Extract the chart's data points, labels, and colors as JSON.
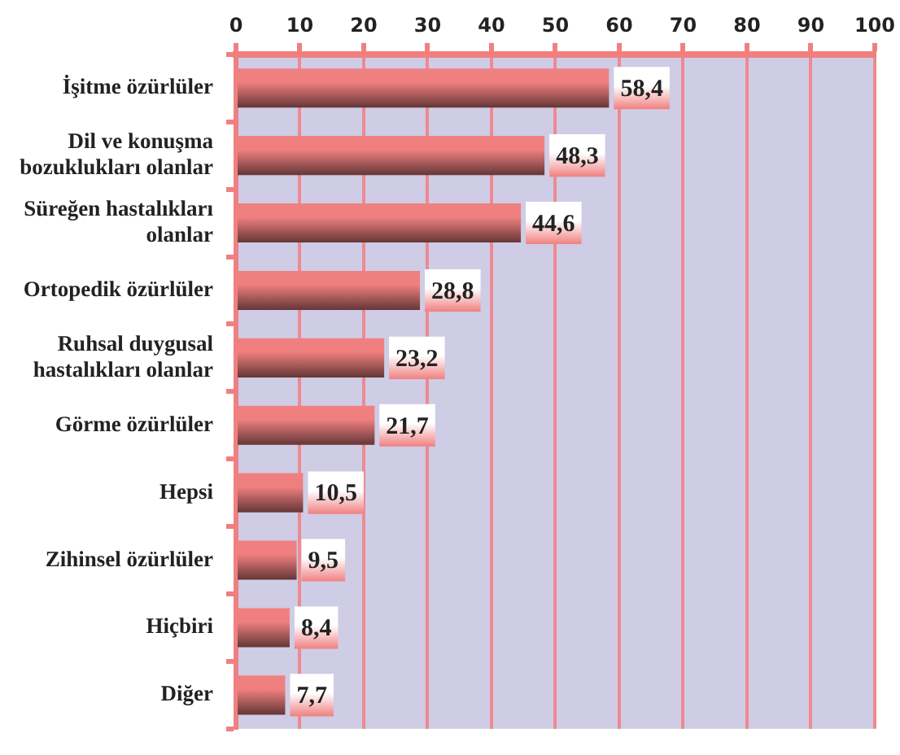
{
  "chart_data": {
    "type": "bar",
    "orientation": "horizontal",
    "categories": [
      "İşitme özürlüler",
      "Dil ve konuşma bozuklukları olanlar",
      "Süreğen hastalıkları olanlar",
      "Ortopedik özürlüler",
      "Ruhsal duygusal hastalıkları olanlar",
      "Görme özürlüler",
      "Hepsi",
      "Zihinsel özürlüler",
      "Hiçbiri",
      "Diğer"
    ],
    "values": [
      58.4,
      48.3,
      44.6,
      28.8,
      23.2,
      21.7,
      10.5,
      9.5,
      8.4,
      7.7
    ],
    "value_labels": [
      "58,4",
      "48,3",
      "44,6",
      "28,8",
      "23,2",
      "21,7",
      "10,5",
      "9,5",
      "8,4",
      "7,7"
    ],
    "color": "#f08080",
    "xlim": [
      0,
      100
    ],
    "xticks": [
      0,
      10,
      20,
      30,
      40,
      50,
      60,
      70,
      80,
      90,
      100
    ],
    "grid": "x"
  }
}
